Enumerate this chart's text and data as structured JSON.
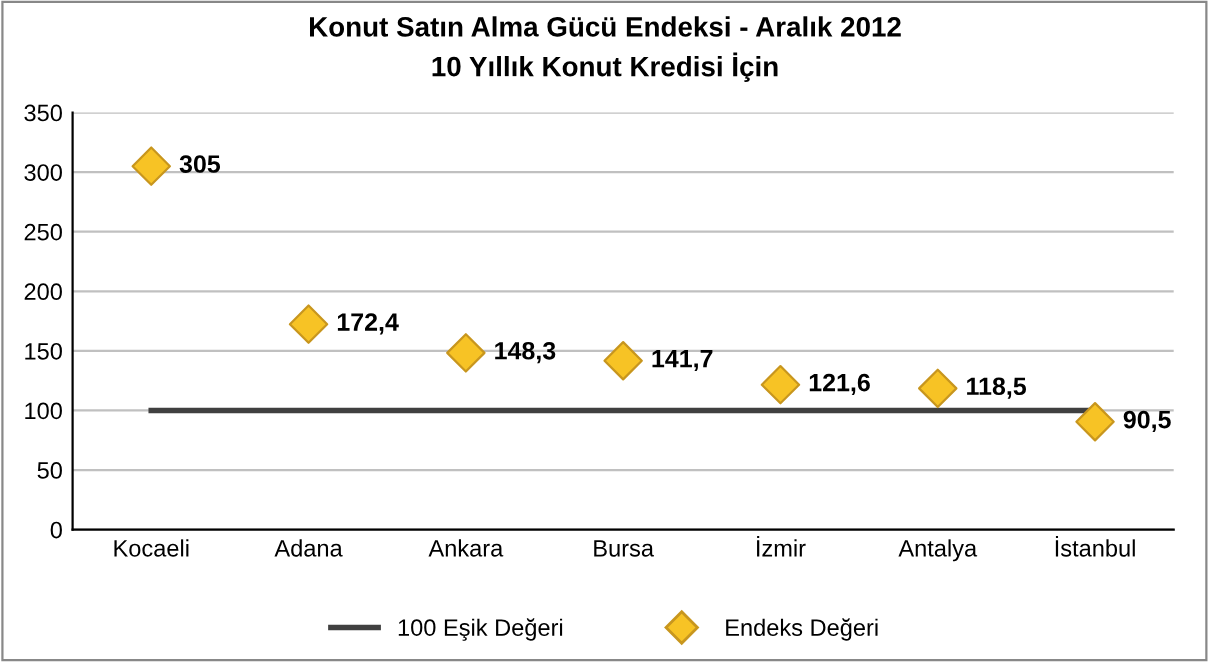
{
  "chart_data": {
    "type": "scatter",
    "title": "Konut Satın Alma Gücü Endeksi - Aralık 2012",
    "subtitle": "10 Yıllık Konut Kredisi İçin",
    "categories": [
      "Kocaeli",
      "Adana",
      "Ankara",
      "Bursa",
      "İzmir",
      "Antalya",
      "İstanbul"
    ],
    "series": [
      {
        "name": "100 Eşik Değeri",
        "type": "line",
        "color": "#404040",
        "marker": "none",
        "values": [
          100,
          100,
          100,
          100,
          100,
          100,
          100
        ]
      },
      {
        "name": "Endeks Değeri",
        "color": "#f7c325",
        "marker": "diamond",
        "values": [
          305,
          172.4,
          148.3,
          141.7,
          121.6,
          118.5,
          90.5
        ],
        "value_labels": [
          "305",
          "172,4",
          "148,3",
          "141,7",
          "121,6",
          "118,5",
          "90,5"
        ]
      }
    ],
    "ylim": [
      0,
      350
    ],
    "yticks": [
      0,
      50,
      100,
      150,
      200,
      250,
      300,
      350
    ],
    "grid": "y",
    "legend": "bottom"
  }
}
